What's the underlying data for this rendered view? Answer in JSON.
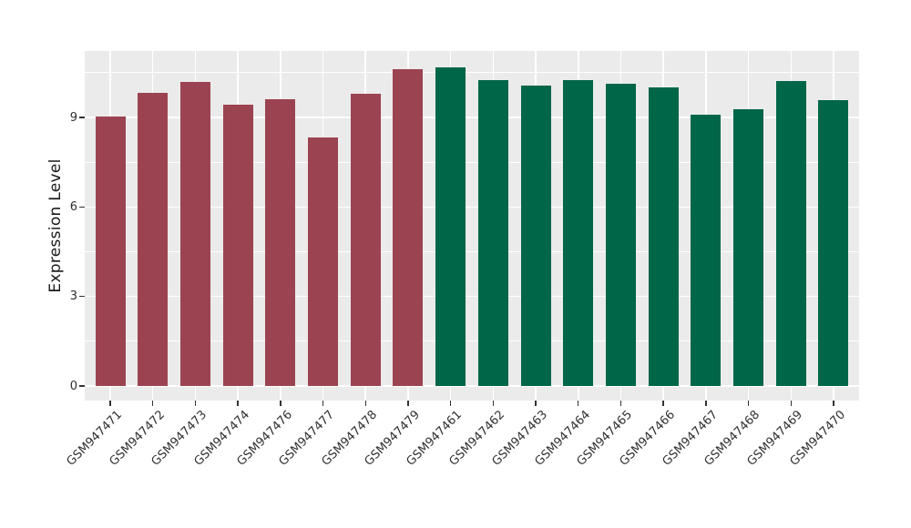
{
  "chart_data": {
    "type": "bar",
    "title": "",
    "xlabel": "",
    "ylabel": "Expression Level",
    "categories": [
      "GSM947471",
      "GSM947472",
      "GSM947473",
      "GSM947474",
      "GSM947476",
      "GSM947477",
      "GSM947478",
      "GSM947479",
      "GSM947461",
      "GSM947462",
      "GSM947463",
      "GSM947464",
      "GSM947465",
      "GSM947466",
      "GSM947467",
      "GSM947468",
      "GSM947469",
      "GSM947470"
    ],
    "values": [
      9.03,
      9.82,
      10.2,
      9.43,
      9.62,
      8.34,
      9.78,
      10.61,
      10.68,
      10.25,
      10.06,
      10.26,
      10.14,
      10.02,
      9.09,
      9.28,
      10.21,
      9.59
    ],
    "bar_colors": [
      "#9C4351",
      "#9C4351",
      "#9C4351",
      "#9C4351",
      "#9C4351",
      "#9C4351",
      "#9C4351",
      "#9C4351",
      "#006648",
      "#006648",
      "#006648",
      "#006648",
      "#006648",
      "#006648",
      "#006648",
      "#006648",
      "#006648",
      "#006648"
    ],
    "yticks": [
      0,
      3,
      6,
      9
    ],
    "minor_yticks": [
      1.5,
      4.5,
      7.5,
      10.5
    ],
    "ylim": [
      0,
      11.2
    ],
    "x_tick_rotation_deg": 45,
    "grid": true,
    "legend": "none",
    "panel_background": "#EBEBEB",
    "gridline_color": "#FFFFFF",
    "axis_text_color": "#303030"
  }
}
